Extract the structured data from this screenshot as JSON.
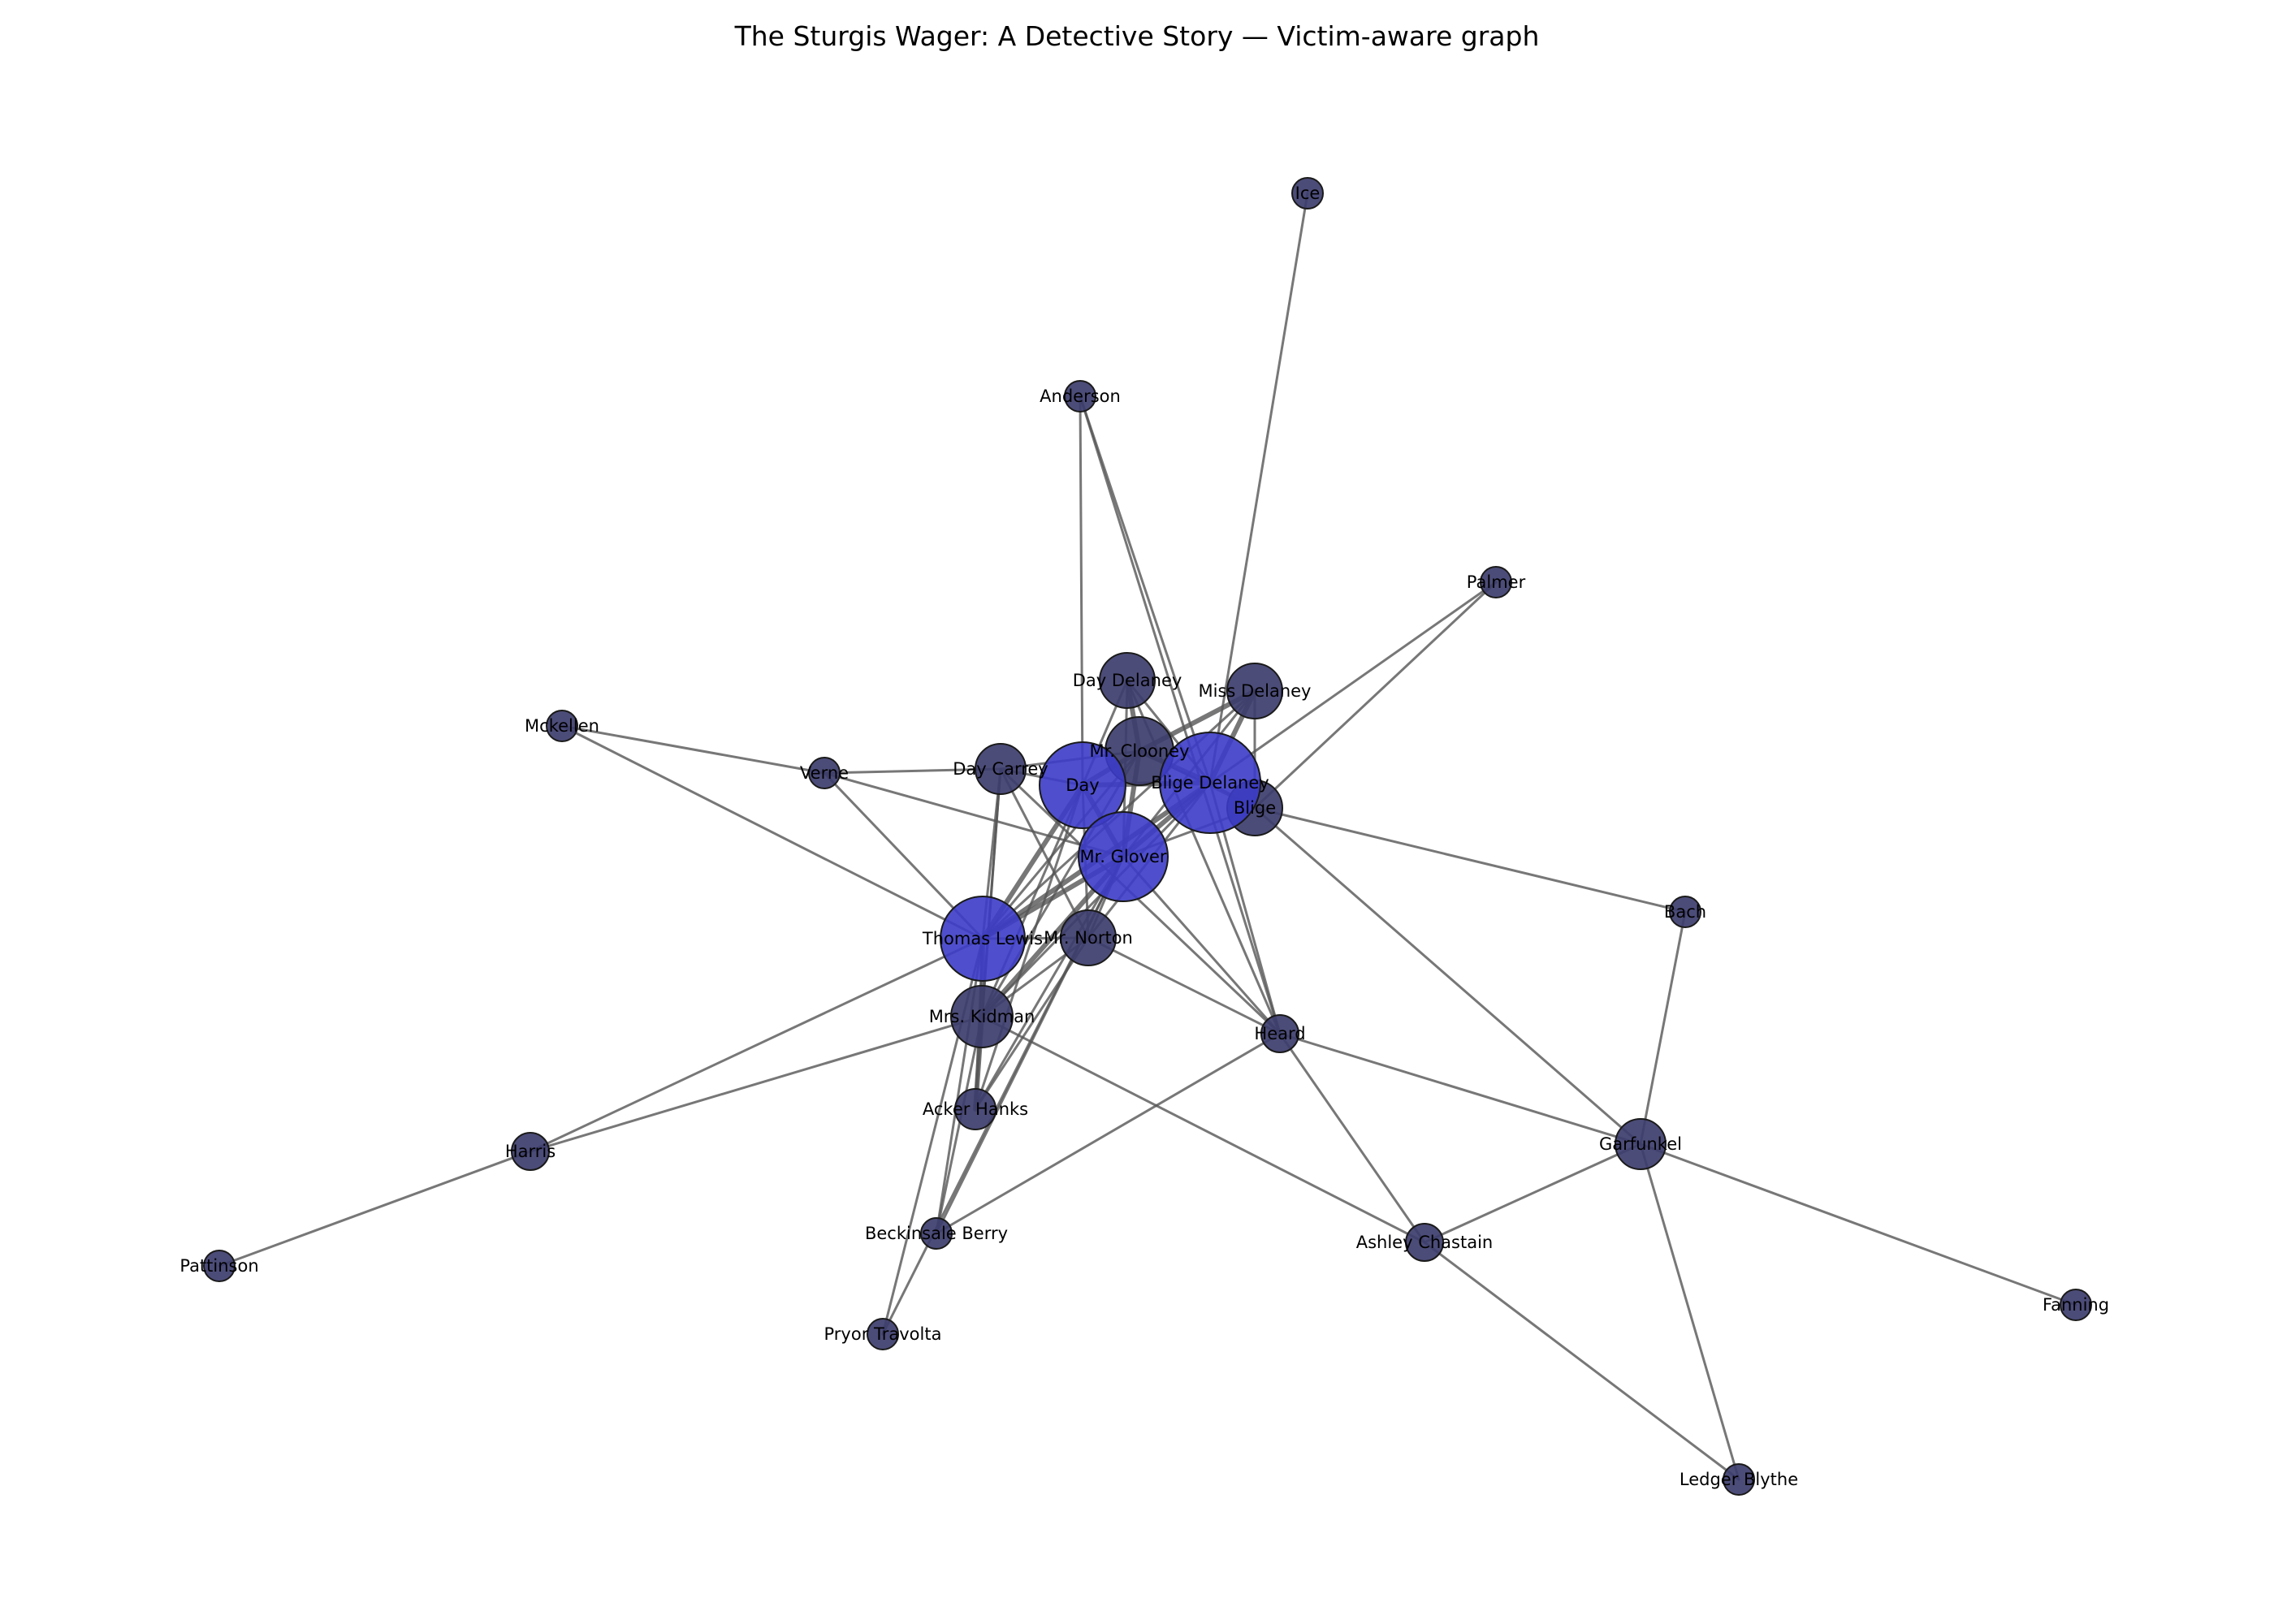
{
  "title": "The Sturgis Wager: A Detective Story — Victim-aware graph",
  "colors": {
    "victim_node": "#3c3cc8",
    "regular_node": "#3d3d6e",
    "edge": "#555555"
  },
  "nodes": [
    {
      "id": "ice",
      "label": "Ice",
      "role": "regular"
    },
    {
      "id": "anderson",
      "label": "Anderson",
      "role": "regular"
    },
    {
      "id": "palmer",
      "label": "Palmer",
      "role": "regular"
    },
    {
      "id": "day_delaney",
      "label": "Day Delaney",
      "role": "regular"
    },
    {
      "id": "miss_delaney",
      "label": "Miss Delaney",
      "role": "regular"
    },
    {
      "id": "mckellen",
      "label": "Mckellen",
      "role": "regular"
    },
    {
      "id": "mr_clooney",
      "label": "Mr. Clooney",
      "role": "regular"
    },
    {
      "id": "verne",
      "label": "Verne",
      "role": "regular"
    },
    {
      "id": "day_carrey",
      "label": "Day Carrey",
      "role": "regular"
    },
    {
      "id": "day",
      "label": "Day",
      "role": "victim"
    },
    {
      "id": "blige_delaney",
      "label": "Blige Delaney",
      "role": "victim"
    },
    {
      "id": "blige",
      "label": "Blige",
      "role": "regular"
    },
    {
      "id": "mr_glover",
      "label": "Mr. Glover",
      "role": "victim"
    },
    {
      "id": "bach",
      "label": "Bach",
      "role": "regular"
    },
    {
      "id": "thomas_lewis",
      "label": "Thomas Lewis",
      "role": "victim"
    },
    {
      "id": "mr_norton",
      "label": "Mr. Norton",
      "role": "regular"
    },
    {
      "id": "mrs_kidman",
      "label": "Mrs. Kidman",
      "role": "regular"
    },
    {
      "id": "heard",
      "label": "Heard",
      "role": "regular"
    },
    {
      "id": "acker_hanks",
      "label": "Acker Hanks",
      "role": "regular"
    },
    {
      "id": "harris",
      "label": "Harris",
      "role": "regular"
    },
    {
      "id": "garfunkel",
      "label": "Garfunkel",
      "role": "regular"
    },
    {
      "id": "beckinsale_berry",
      "label": "Beckinsale Berry",
      "role": "regular"
    },
    {
      "id": "ashley_chastain",
      "label": "Ashley Chastain",
      "role": "regular"
    },
    {
      "id": "pattinson",
      "label": "Pattinson",
      "role": "regular"
    },
    {
      "id": "pryor_travolta",
      "label": "Pryor Travolta",
      "role": "regular"
    },
    {
      "id": "fanning",
      "label": "Fanning",
      "role": "regular"
    },
    {
      "id": "ledger_blythe",
      "label": "Ledger Blythe",
      "role": "regular"
    }
  ],
  "edges": [
    [
      "ice",
      "blige_delaney"
    ],
    [
      "anderson",
      "day"
    ],
    [
      "anderson",
      "heard"
    ],
    [
      "anderson",
      "blige_delaney"
    ],
    [
      "palmer",
      "blige_delaney"
    ],
    [
      "palmer",
      "blige"
    ],
    [
      "mckellen",
      "verne"
    ],
    [
      "mckellen",
      "thomas_lewis"
    ],
    [
      "verne",
      "day_carrey"
    ],
    [
      "verne",
      "thomas_lewis"
    ],
    [
      "verne",
      "mr_glover"
    ],
    [
      "day_delaney",
      "day"
    ],
    [
      "day_delaney",
      "mr_clooney"
    ],
    [
      "day_delaney",
      "mr_glover"
    ],
    [
      "day_delaney",
      "blige_delaney"
    ],
    [
      "day_delaney",
      "heard"
    ],
    [
      "miss_delaney",
      "mr_clooney"
    ],
    [
      "miss_delaney",
      "blige_delaney"
    ],
    [
      "miss_delaney",
      "blige"
    ],
    [
      "miss_delaney",
      "mr_glover"
    ],
    [
      "miss_delaney",
      "thomas_lewis"
    ],
    [
      "day_carrey",
      "day"
    ],
    [
      "day_carrey",
      "mr_clooney"
    ],
    [
      "day_carrey",
      "thomas_lewis"
    ],
    [
      "day_carrey",
      "mrs_kidman"
    ],
    [
      "day_carrey",
      "mr_norton"
    ],
    [
      "day_carrey",
      "acker_hanks"
    ],
    [
      "day_carrey",
      "heard"
    ],
    [
      "day",
      "mr_clooney"
    ],
    [
      "day",
      "blige_delaney"
    ],
    [
      "day",
      "mr_glover"
    ],
    [
      "day",
      "thomas_lewis"
    ],
    [
      "day",
      "mr_norton"
    ],
    [
      "day",
      "mrs_kidman"
    ],
    [
      "day",
      "acker_hanks"
    ],
    [
      "mr_clooney",
      "blige_delaney"
    ],
    [
      "mr_clooney",
      "mr_glover"
    ],
    [
      "mr_clooney",
      "thomas_lewis"
    ],
    [
      "mr_clooney",
      "blige"
    ],
    [
      "mr_clooney",
      "mrs_kidman"
    ],
    [
      "blige_delaney",
      "blige"
    ],
    [
      "blige_delaney",
      "mr_glover"
    ],
    [
      "blige_delaney",
      "thomas_lewis"
    ],
    [
      "blige_delaney",
      "mr_norton"
    ],
    [
      "blige_delaney",
      "heard"
    ],
    [
      "blige_delaney",
      "mrs_kidman"
    ],
    [
      "blige",
      "bach"
    ],
    [
      "blige",
      "garfunkel"
    ],
    [
      "blige",
      "mr_glover"
    ],
    [
      "mr_glover",
      "thomas_lewis"
    ],
    [
      "mr_glover",
      "mr_norton"
    ],
    [
      "mr_glover",
      "mrs_kidman"
    ],
    [
      "mr_glover",
      "acker_hanks"
    ],
    [
      "mr_glover",
      "heard"
    ],
    [
      "mr_glover",
      "beckinsale_berry"
    ],
    [
      "mr_glover",
      "pryor_travolta"
    ],
    [
      "thomas_lewis",
      "mr_norton"
    ],
    [
      "thomas_lewis",
      "mrs_kidman"
    ],
    [
      "thomas_lewis",
      "acker_hanks"
    ],
    [
      "thomas_lewis",
      "harris"
    ],
    [
      "thomas_lewis",
      "beckinsale_berry"
    ],
    [
      "thomas_lewis",
      "pryor_travolta"
    ],
    [
      "mr_norton",
      "heard"
    ],
    [
      "mr_norton",
      "mrs_kidman"
    ],
    [
      "mr_norton",
      "acker_hanks"
    ],
    [
      "mrs_kidman",
      "acker_hanks"
    ],
    [
      "mrs_kidman",
      "harris"
    ],
    [
      "mrs_kidman",
      "ashley_chastain"
    ],
    [
      "mrs_kidman",
      "beckinsale_berry"
    ],
    [
      "heard",
      "garfunkel"
    ],
    [
      "heard",
      "ashley_chastain"
    ],
    [
      "heard",
      "beckinsale_berry"
    ],
    [
      "harris",
      "pattinson"
    ],
    [
      "bach",
      "garfunkel"
    ],
    [
      "garfunkel",
      "ashley_chastain"
    ],
    [
      "garfunkel",
      "fanning"
    ],
    [
      "garfunkel",
      "ledger_blythe"
    ],
    [
      "ashley_chastain",
      "ledger_blythe"
    ]
  ]
}
